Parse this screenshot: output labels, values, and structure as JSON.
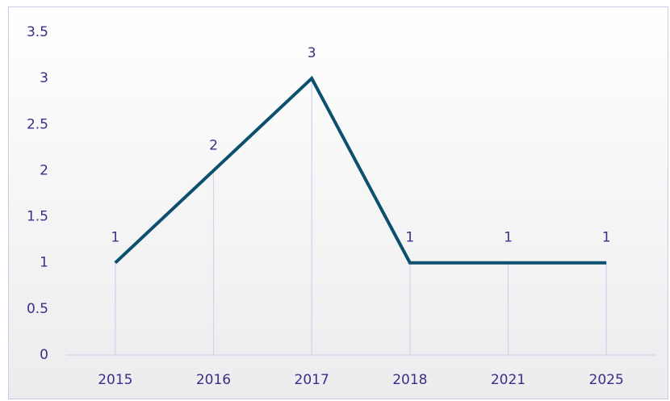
{
  "chart_data": {
    "type": "line",
    "categories": [
      "2015",
      "2016",
      "2017",
      "2018",
      "2021",
      "2025"
    ],
    "values": [
      1,
      2,
      3,
      1,
      1,
      1
    ],
    "color": "#0d4f6e",
    "ylim": [
      0,
      3.5
    ],
    "yticks": [
      0,
      0.5,
      1,
      1.5,
      2,
      2.5,
      3,
      3.5
    ],
    "data_labels": true,
    "drop_lines": true
  }
}
